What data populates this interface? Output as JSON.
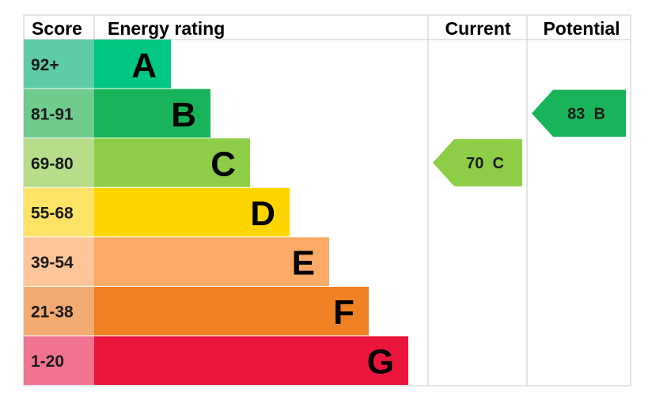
{
  "chart_data": {
    "type": "bar",
    "headers": {
      "score": "Score",
      "energy_rating": "Energy rating",
      "current": "Current",
      "potential": "Potential"
    },
    "bands": [
      {
        "score": "92+",
        "letter": "A",
        "bar_color": "#00c781",
        "score_color": "#5fcca6",
        "extent": 1
      },
      {
        "score": "81-91",
        "letter": "B",
        "bar_color": "#19b459",
        "score_color": "#6fcb8e",
        "extent": 2
      },
      {
        "score": "69-80",
        "letter": "C",
        "bar_color": "#8dce46",
        "score_color": "#b5dd8a",
        "extent": 3
      },
      {
        "score": "55-68",
        "letter": "D",
        "bar_color": "#ffd500",
        "score_color": "#ffe366",
        "extent": 4
      },
      {
        "score": "39-54",
        "letter": "E",
        "bar_color": "#fcaa65",
        "score_color": "#fdc69a",
        "extent": 5
      },
      {
        "score": "21-38",
        "letter": "F",
        "bar_color": "#ef8023",
        "score_color": "#f4ab72",
        "extent": 6
      },
      {
        "score": "1-20",
        "letter": "G",
        "bar_color": "#e9153b",
        "score_color": "#f07390",
        "extent": 7
      }
    ],
    "current": {
      "value": 70,
      "letter": "C",
      "label": "70  C",
      "color": "#8dce46"
    },
    "potential": {
      "value": 83,
      "letter": "B",
      "label": "83  B",
      "color": "#19b459"
    }
  }
}
